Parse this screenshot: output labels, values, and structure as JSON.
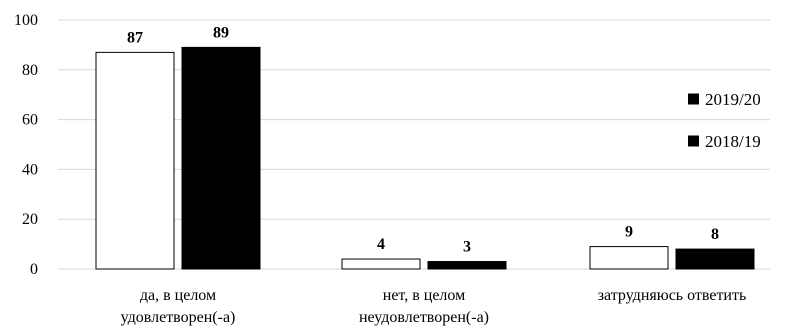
{
  "chart_data": {
    "type": "bar",
    "categories": [
      [
        "да, в целом",
        "удовлетворен(-а)"
      ],
      [
        "нет, в целом",
        "неудовлетворен(-а)"
      ],
      [
        "затрудняюсь ответить"
      ]
    ],
    "series": [
      {
        "name": "2018/19",
        "values": [
          87,
          4,
          9
        ],
        "data_labels": [
          "87",
          "4",
          "9"
        ],
        "fill": "#ffffff",
        "stroke": "#000000"
      },
      {
        "name": "2019/20",
        "values": [
          89,
          3,
          8
        ],
        "data_labels": [
          "89",
          "3",
          "8"
        ],
        "fill": "#000000",
        "stroke": "#000000"
      }
    ],
    "legend": {
      "placement": "right",
      "items": [
        {
          "label": "2019/20",
          "color": "#000000"
        },
        {
          "label": "2018/19",
          "color": "#000000"
        }
      ]
    },
    "y_ticks": [
      "0",
      "20",
      "40",
      "60",
      "80",
      "100"
    ],
    "ylim": [
      0,
      100
    ],
    "grid": true,
    "gridline_color": "#d9d9d9",
    "title": "",
    "xlabel": "",
    "ylabel": ""
  }
}
